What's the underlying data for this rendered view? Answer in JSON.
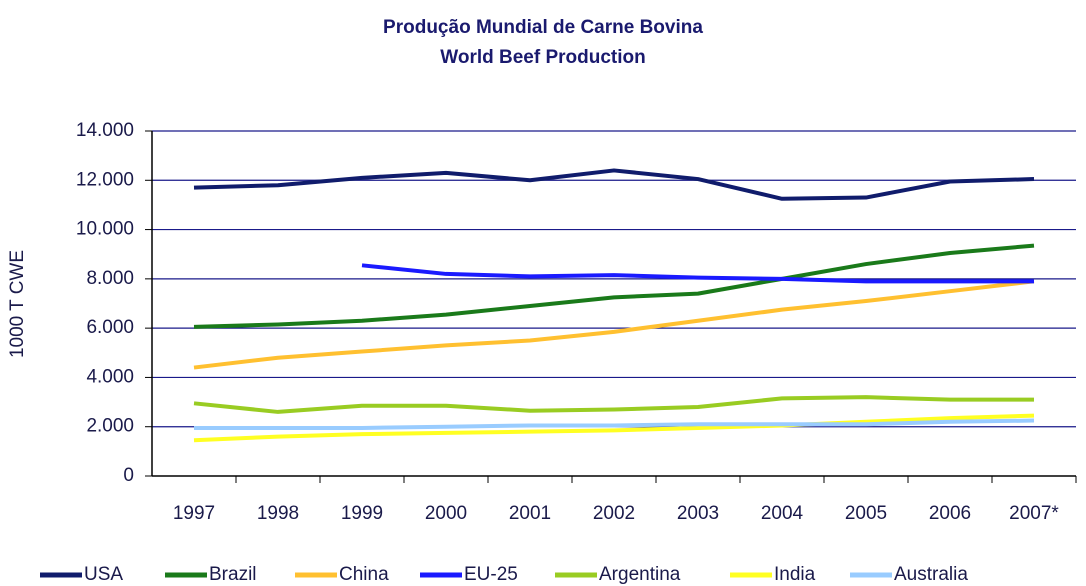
{
  "chart_data": {
    "type": "line",
    "title": "Produção Mundial de Carne Bovina",
    "subtitle": "World Beef Production",
    "y_label": "1000 T CWE",
    "categories": [
      "1997",
      "1998",
      "1999",
      "2000",
      "2001",
      "2002",
      "2003",
      "2004",
      "2005",
      "2006",
      "2007*"
    ],
    "ylim": [
      0,
      14000
    ],
    "yticks": [
      0,
      {
        "value": 2000,
        "label": "2.000"
      },
      {
        "value": 4000,
        "label": "4.000"
      },
      {
        "value": 6000,
        "label": "6.000"
      },
      {
        "value": 8000,
        "label": "8.000"
      },
      {
        "value": 10000,
        "label": "10.000"
      },
      {
        "value": 12000,
        "label": "12.000"
      },
      {
        "value": 14000,
        "label": "14.000"
      }
    ],
    "grid": true,
    "legend": "bottom",
    "series": [
      {
        "name": "USA",
        "color": "#101c6c",
        "values": [
          11700,
          11800,
          12100,
          12300,
          12000,
          12400,
          12050,
          11250,
          11300,
          11950,
          12050
        ]
      },
      {
        "name": "Brazil",
        "color": "#1a7a1a",
        "values": [
          6050,
          6150,
          6300,
          6550,
          6900,
          7250,
          7400,
          8000,
          8600,
          9050,
          9350
        ]
      },
      {
        "name": "China",
        "color": "#ffc030",
        "values": [
          4400,
          4800,
          5050,
          5300,
          5500,
          5850,
          6300,
          6750,
          7100,
          7500,
          7900
        ]
      },
      {
        "name": "EU-25",
        "color": "#1a1aff",
        "values": [
          null,
          null,
          8550,
          8200,
          8100,
          8150,
          8050,
          8000,
          7900,
          7900,
          7900
        ]
      },
      {
        "name": "Argentina",
        "color": "#99cc22",
        "values": [
          2950,
          2600,
          2850,
          2850,
          2650,
          2700,
          2800,
          3150,
          3200,
          3100,
          3100
        ]
      },
      {
        "name": "India",
        "color": "#ffff22",
        "values": [
          1450,
          1600,
          1700,
          1750,
          1800,
          1850,
          1950,
          2050,
          2200,
          2350,
          2450
        ]
      },
      {
        "name": "Australia",
        "color": "#99ccff",
        "values": [
          1950,
          1950,
          1950,
          2000,
          2050,
          2050,
          2100,
          2100,
          2100,
          2200,
          2250
        ]
      }
    ]
  }
}
